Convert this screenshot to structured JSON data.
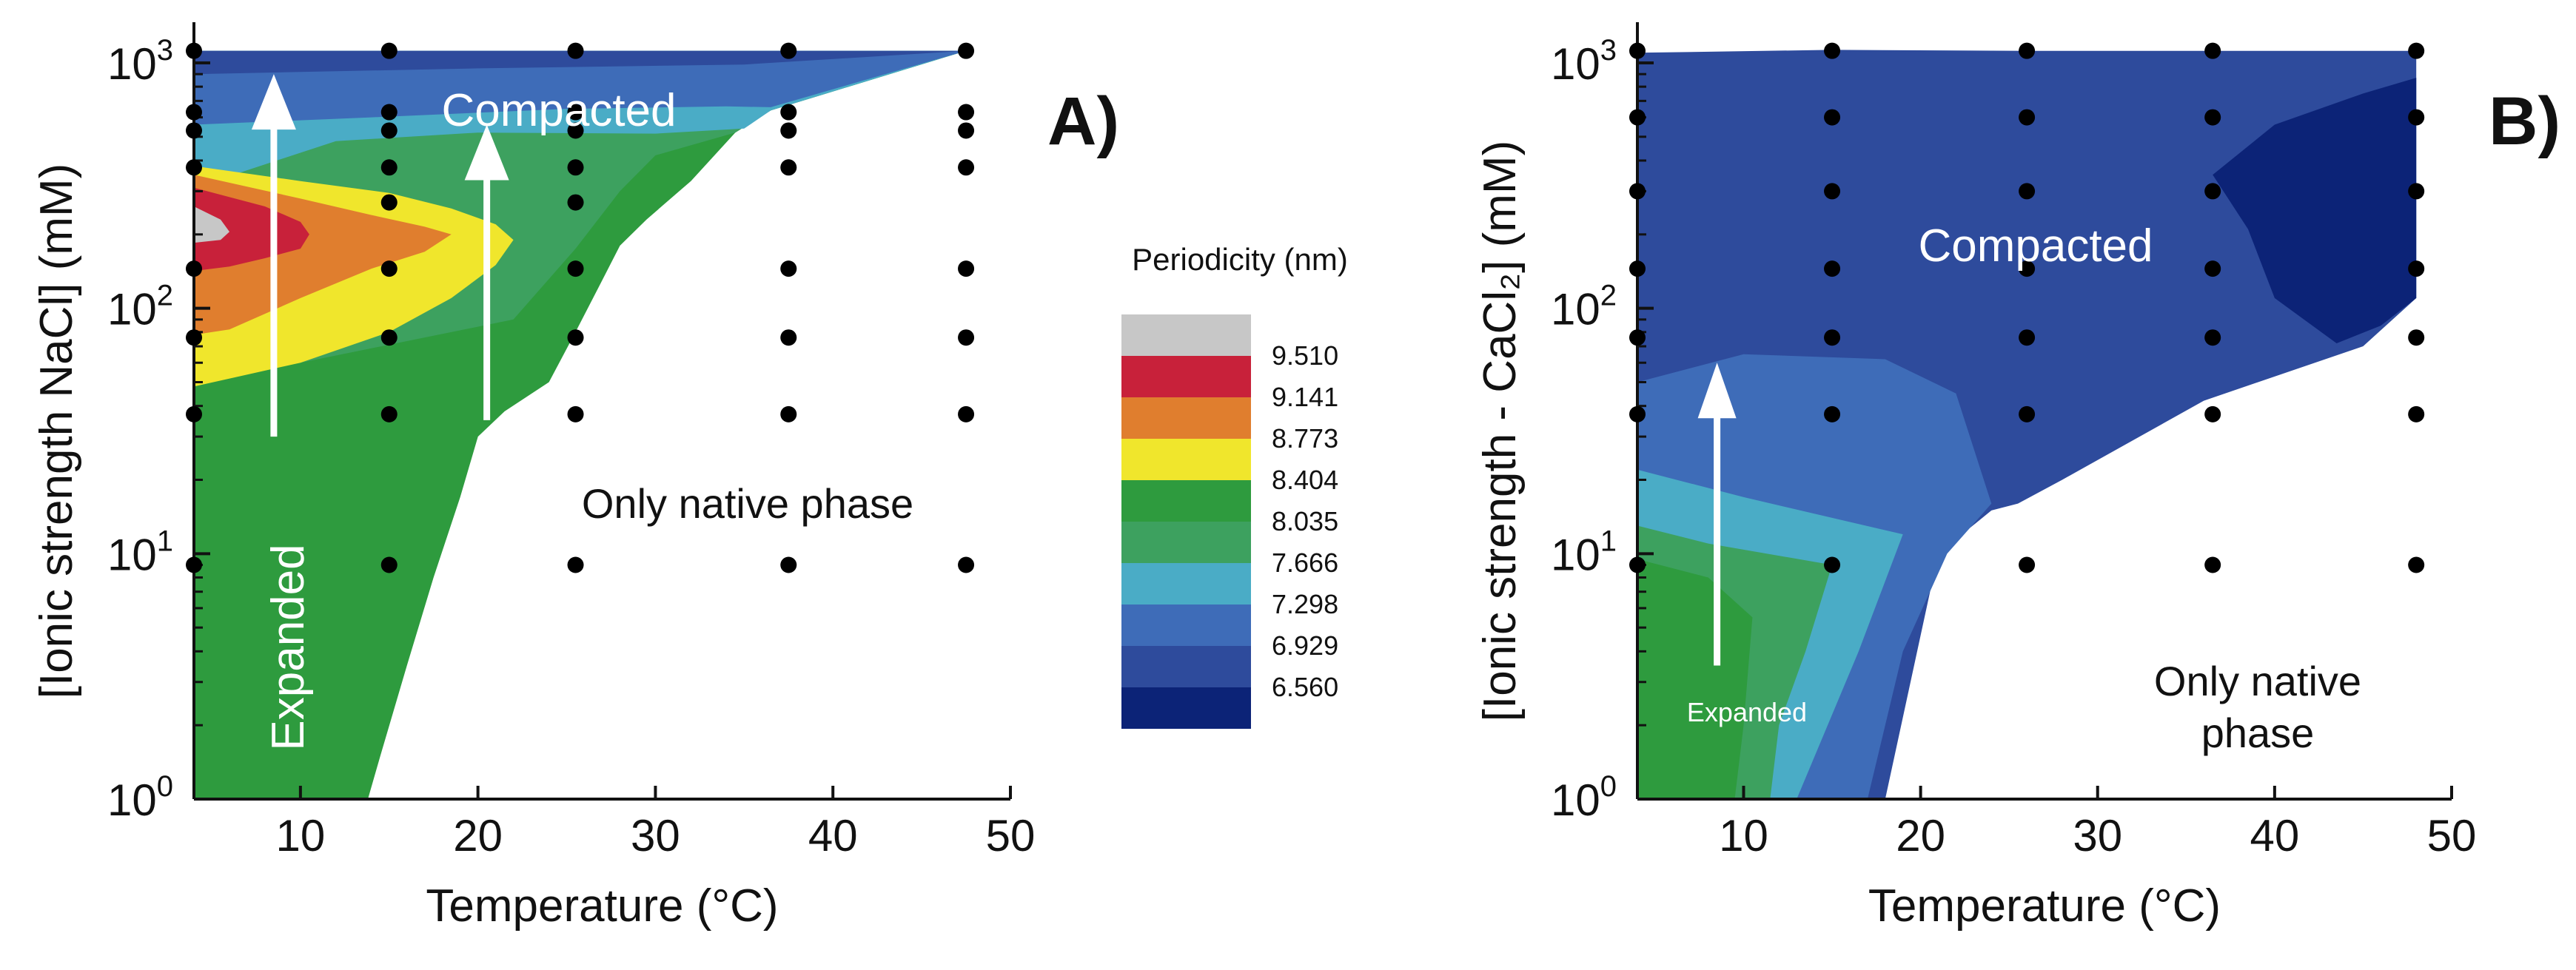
{
  "chart_data": [
    {
      "type": "filled-contour",
      "panel": "A)",
      "xlabel": "Temperature (°C)",
      "ylabel": "[Ionic strength NaCl] (mM)",
      "xlim": [
        4,
        50
      ],
      "ylim": [
        1,
        1000
      ],
      "yscale": "log",
      "xticks": [
        10,
        20,
        30,
        40,
        50
      ],
      "yticks": [
        {
          "value": 1,
          "base": "10",
          "exp": "0"
        },
        {
          "value": 10,
          "base": "10",
          "exp": "1"
        },
        {
          "value": 100,
          "base": "10",
          "exp": "2"
        },
        {
          "value": 1000,
          "base": "10",
          "exp": "3"
        }
      ],
      "region_labels": {
        "compacted": "Compacted",
        "expanded": "Expanded",
        "native": "Only native phase"
      },
      "arrows": [
        {
          "x": 8.5,
          "from": 30,
          "to": 900
        },
        {
          "x": 20.5,
          "from": 35,
          "to": 560
        }
      ],
      "sample_temperatures": [
        4,
        15,
        25.5,
        37.5,
        47.5
      ],
      "sample_points": [
        {
          "t": 4,
          "c": 9
        },
        {
          "t": 4,
          "c": 37
        },
        {
          "t": 4,
          "c": 76
        },
        {
          "t": 4,
          "c": 145
        },
        {
          "t": 4,
          "c": 375
        },
        {
          "t": 4,
          "c": 530
        },
        {
          "t": 4,
          "c": 630
        },
        {
          "t": 4,
          "c": 1120
        },
        {
          "t": 15,
          "c": 9
        },
        {
          "t": 15,
          "c": 37
        },
        {
          "t": 15,
          "c": 76
        },
        {
          "t": 15,
          "c": 145
        },
        {
          "t": 15,
          "c": 270
        },
        {
          "t": 15,
          "c": 375
        },
        {
          "t": 15,
          "c": 530
        },
        {
          "t": 15,
          "c": 630
        },
        {
          "t": 15,
          "c": 1120
        },
        {
          "t": 25.5,
          "c": 9
        },
        {
          "t": 25.5,
          "c": 37
        },
        {
          "t": 25.5,
          "c": 76
        },
        {
          "t": 25.5,
          "c": 145
        },
        {
          "t": 25.5,
          "c": 270
        },
        {
          "t": 25.5,
          "c": 375
        },
        {
          "t": 25.5,
          "c": 530
        },
        {
          "t": 25.5,
          "c": 630
        },
        {
          "t": 25.5,
          "c": 1120
        },
        {
          "t": 37.5,
          "c": 9
        },
        {
          "t": 37.5,
          "c": 37
        },
        {
          "t": 37.5,
          "c": 76
        },
        {
          "t": 37.5,
          "c": 145
        },
        {
          "t": 37.5,
          "c": 375
        },
        {
          "t": 37.5,
          "c": 530
        },
        {
          "t": 37.5,
          "c": 630
        },
        {
          "t": 37.5,
          "c": 1120
        },
        {
          "t": 47.5,
          "c": 9
        },
        {
          "t": 47.5,
          "c": 37
        },
        {
          "t": 47.5,
          "c": 76
        },
        {
          "t": 47.5,
          "c": 145
        },
        {
          "t": 47.5,
          "c": 375
        },
        {
          "t": 47.5,
          "c": 530
        },
        {
          "t": 47.5,
          "c": 630
        },
        {
          "t": 47.5,
          "c": 1120
        }
      ],
      "contour_regions": [
        {
          "level": "8.404",
          "color": "#2e9b3e",
          "polygon": [
            [
              4,
              1
            ],
            [
              13.8,
              1
            ],
            [
              14.5,
              1.5
            ],
            [
              16,
              3.5
            ],
            [
              17.5,
              8
            ],
            [
              19,
              17
            ],
            [
              20,
              30
            ],
            [
              21.5,
              38
            ],
            [
              24,
              50
            ],
            [
              25.5,
              80
            ],
            [
              27,
              130
            ],
            [
              28,
              180
            ],
            [
              29.5,
              230
            ],
            [
              32,
              330
            ],
            [
              34.5,
              520
            ],
            [
              36.5,
              640
            ],
            [
              47.5,
              1120
            ],
            [
              4,
              1120
            ]
          ]
        },
        {
          "level": "8.035",
          "color": "#3da15f",
          "polygon": [
            [
              4,
              52
            ],
            [
              10,
              60
            ],
            [
              22,
              90
            ],
            [
              25.5,
              175
            ],
            [
              28,
              300
            ],
            [
              30,
              420
            ],
            [
              34.5,
              520
            ],
            [
              36.5,
              640
            ],
            [
              47.5,
              1120
            ],
            [
              4,
              1120
            ]
          ]
        },
        {
          "level": "7.666",
          "color": "#4aacc6",
          "polygon": [
            [
              4,
              310
            ],
            [
              12,
              480
            ],
            [
              20,
              520
            ],
            [
              30,
              515
            ],
            [
              35,
              540
            ],
            [
              36.5,
              640
            ],
            [
              47.5,
              1120
            ],
            [
              4,
              1120
            ]
          ]
        },
        {
          "level": "7.298",
          "color": "#3e6cb8",
          "polygon": [
            [
              4,
              560
            ],
            [
              14,
              600
            ],
            [
              25,
              650
            ],
            [
              34,
              665
            ],
            [
              36.5,
              660
            ],
            [
              47.5,
              1120
            ],
            [
              4,
              1120
            ]
          ]
        },
        {
          "level": "6.929",
          "color": "#2e4b9c",
          "polygon": [
            [
              4,
              900
            ],
            [
              20,
              950
            ],
            [
              35,
              985
            ],
            [
              47.5,
              1120
            ],
            [
              4,
              1120
            ]
          ]
        },
        {
          "level": "8.773",
          "color": "#f0e62c",
          "polygon": [
            [
              4,
              380
            ],
            [
              10,
              330
            ],
            [
              15,
              295
            ],
            [
              18.5,
              255
            ],
            [
              21,
              220
            ],
            [
              22,
              190
            ],
            [
              21,
              150
            ],
            [
              18.5,
              110
            ],
            [
              15,
              80
            ],
            [
              10,
              60
            ],
            [
              4,
              48
            ]
          ]
        },
        {
          "level": "9.141",
          "color": "#e07e2e",
          "polygon": [
            [
              4,
              350
            ],
            [
              10,
              280
            ],
            [
              14,
              240
            ],
            [
              17,
              215
            ],
            [
              18.5,
              200
            ],
            [
              17,
              170
            ],
            [
              14,
              145
            ],
            [
              10,
              110
            ],
            [
              6,
              82
            ],
            [
              4,
              78
            ]
          ]
        },
        {
          "level": "9.510",
          "color": "#c8213a",
          "polygon": [
            [
              4,
              310
            ],
            [
              8,
              260
            ],
            [
              10,
              225
            ],
            [
              10.5,
              200
            ],
            [
              10,
              175
            ],
            [
              8,
              160
            ],
            [
              6,
              148
            ],
            [
              4,
              142
            ]
          ]
        },
        {
          "level": "above",
          "color": "#c7c7c7",
          "polygon": [
            [
              4,
              260
            ],
            [
              5.5,
              230
            ],
            [
              6,
              205
            ],
            [
              5.5,
              190
            ],
            [
              4,
              185
            ]
          ]
        }
      ]
    },
    {
      "type": "filled-contour",
      "panel": "B)",
      "xlabel": "Temperature (°C)",
      "ylabel": "[Ionic strength - CaCl₂] (mM)",
      "xlim": [
        4,
        50
      ],
      "ylim": [
        1,
        1000
      ],
      "yscale": "log",
      "xticks": [
        10,
        20,
        30,
        40,
        50
      ],
      "yticks": [
        {
          "value": 1,
          "base": "10",
          "exp": "0"
        },
        {
          "value": 10,
          "base": "10",
          "exp": "1"
        },
        {
          "value": 100,
          "base": "10",
          "exp": "2"
        },
        {
          "value": 1000,
          "base": "10",
          "exp": "3"
        }
      ],
      "region_labels": {
        "compacted": "Compacted",
        "expanded": "Expanded",
        "native_line1": "Only native",
        "native_line2": "phase"
      },
      "arrows": [
        {
          "x": 8.5,
          "from": 3.5,
          "to": 60
        }
      ],
      "sample_temperatures": [
        4,
        15,
        26,
        36.5,
        48
      ],
      "sample_points": [
        {
          "t": 4,
          "c": 9
        },
        {
          "t": 4,
          "c": 37
        },
        {
          "t": 4,
          "c": 76
        },
        {
          "t": 4,
          "c": 145
        },
        {
          "t": 4,
          "c": 300
        },
        {
          "t": 4,
          "c": 600
        },
        {
          "t": 4,
          "c": 1120
        },
        {
          "t": 15,
          "c": 9
        },
        {
          "t": 15,
          "c": 37
        },
        {
          "t": 15,
          "c": 76
        },
        {
          "t": 15,
          "c": 145
        },
        {
          "t": 15,
          "c": 300
        },
        {
          "t": 15,
          "c": 600
        },
        {
          "t": 15,
          "c": 1120
        },
        {
          "t": 26,
          "c": 9
        },
        {
          "t": 26,
          "c": 37
        },
        {
          "t": 26,
          "c": 76
        },
        {
          "t": 26,
          "c": 145
        },
        {
          "t": 26,
          "c": 300
        },
        {
          "t": 26,
          "c": 600
        },
        {
          "t": 26,
          "c": 1120
        },
        {
          "t": 36.5,
          "c": 9
        },
        {
          "t": 36.5,
          "c": 37
        },
        {
          "t": 36.5,
          "c": 76
        },
        {
          "t": 36.5,
          "c": 145
        },
        {
          "t": 36.5,
          "c": 300
        },
        {
          "t": 36.5,
          "c": 600
        },
        {
          "t": 36.5,
          "c": 1120
        },
        {
          "t": 48,
          "c": 9
        },
        {
          "t": 48,
          "c": 37
        },
        {
          "t": 48,
          "c": 76
        },
        {
          "t": 48,
          "c": 145
        },
        {
          "t": 48,
          "c": 300
        },
        {
          "t": 48,
          "c": 600
        },
        {
          "t": 48,
          "c": 1120
        }
      ],
      "contour_regions": [
        {
          "level": "6.929",
          "color": "#2e4b9c",
          "polygon": [
            [
              4,
              1100
            ],
            [
              15,
              1130
            ],
            [
              26,
              1120
            ],
            [
              36.5,
              1120
            ],
            [
              48,
              1120
            ],
            [
              48,
              110
            ],
            [
              45,
              70
            ],
            [
              36,
              42
            ],
            [
              28,
              20
            ],
            [
              25.5,
              16
            ],
            [
              24,
              15
            ],
            [
              21,
              10
            ],
            [
              18,
              1
            ],
            [
              4,
              1
            ]
          ]
        },
        {
          "level": "6.560",
          "color": "#0c2377",
          "polygon": [
            [
              48,
              870
            ],
            [
              45,
              750
            ],
            [
              40,
              560
            ],
            [
              36.5,
              350
            ],
            [
              38.5,
              210
            ],
            [
              40,
              110
            ],
            [
              43.5,
              72
            ],
            [
              46,
              85
            ],
            [
              48,
              110
            ]
          ]
        },
        {
          "level": "7.298",
          "color": "#3e6cb8",
          "polygon": [
            [
              4,
              50
            ],
            [
              10,
              65
            ],
            [
              18,
              62
            ],
            [
              22,
              45
            ],
            [
              24,
              16
            ],
            [
              21.5,
              10
            ],
            [
              19,
              4
            ],
            [
              17,
              1
            ],
            [
              4,
              1
            ]
          ]
        },
        {
          "level": "7.666",
          "color": "#4aacc6",
          "polygon": [
            [
              4,
              22
            ],
            [
              10,
              17
            ],
            [
              15,
              14
            ],
            [
              19,
              12
            ],
            [
              16.5,
              4
            ],
            [
              13,
              1
            ],
            [
              4,
              1
            ]
          ]
        },
        {
          "level": "8.035",
          "color": "#3da15f",
          "polygon": [
            [
              4,
              13
            ],
            [
              8,
              11
            ],
            [
              15,
              9
            ],
            [
              13.5,
              4
            ],
            [
              12,
              2
            ],
            [
              11.5,
              1
            ],
            [
              4,
              1
            ]
          ]
        },
        {
          "level": "8.404",
          "color": "#2e9b3e",
          "polygon": [
            [
              4,
              9.5
            ],
            [
              8,
              8
            ],
            [
              10.5,
              5.5
            ],
            [
              10,
              2
            ],
            [
              9.5,
              1
            ],
            [
              4,
              1
            ]
          ]
        }
      ]
    }
  ],
  "legend": {
    "title": "Periodicity (nm)",
    "bands": [
      {
        "color": "#c7c7c7",
        "label": "9.510"
      },
      {
        "color": "#c8213a",
        "label": "9.141"
      },
      {
        "color": "#e07e2e",
        "label": "8.773"
      },
      {
        "color": "#f0e62c",
        "label": "8.404"
      },
      {
        "color": "#2e9b3e",
        "label": "8.035"
      },
      {
        "color": "#3da15f",
        "label": "7.666"
      },
      {
        "color": "#4aacc6",
        "label": "7.298"
      },
      {
        "color": "#3e6cb8",
        "label": "6.929"
      },
      {
        "color": "#2e4b9c",
        "label": "6.560"
      },
      {
        "color": "#0c2377",
        "label": ""
      }
    ]
  }
}
